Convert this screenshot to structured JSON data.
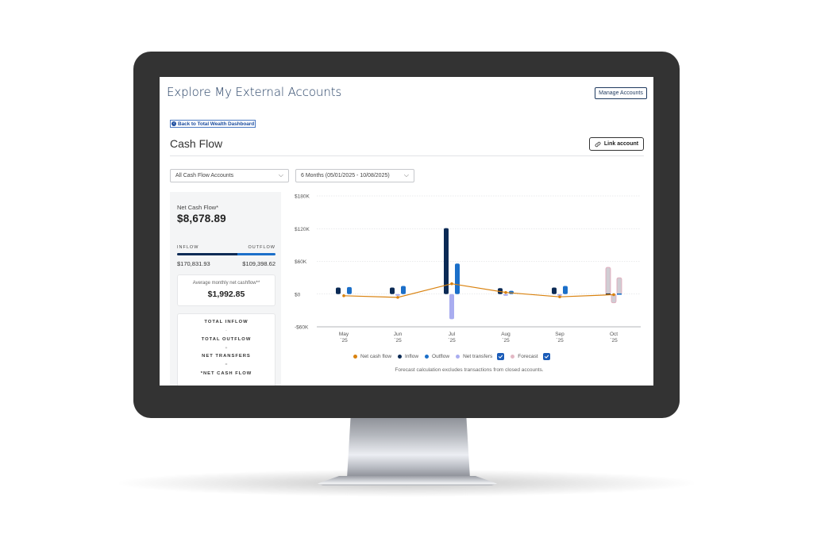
{
  "header": {
    "title": "Explore My External Accounts",
    "manage_accounts_label": "Manage Accounts"
  },
  "nav": {
    "back_link_label": "Back to Total Wealth Dashboard"
  },
  "section": {
    "title": "Cash Flow",
    "link_account_label": "Link account"
  },
  "filters": {
    "accounts": {
      "selected": "All Cash Flow Accounts"
    },
    "date_range": {
      "selected": "6 Months (05/01/2025 - 10/08/2025)"
    }
  },
  "summary": {
    "net_cash_flow_label": "Net Cash Flow*",
    "net_cash_flow_value": "$8,678.89",
    "inflow_label": "INFLOW",
    "outflow_label": "OUTFLOW",
    "inflow_value": "$170,831.93",
    "outflow_value": "$109,398.62",
    "inflow_share_pct": 61,
    "average_label": "Average monthly net cashflow**",
    "average_value": "$1,992.85",
    "formula": {
      "line1": "TOTAL INFLOW",
      "op1": "-",
      "line2": "TOTAL OUTFLOW",
      "op2": "+",
      "line3": "NET TRANSFERS",
      "op3": "=",
      "line4": "*NET CASH FLOW"
    }
  },
  "legend": {
    "items": [
      {
        "label": "Net cash flow",
        "color": "#d9820f",
        "checkbox": false
      },
      {
        "label": "Inflow",
        "color": "#0b2a55",
        "checkbox": false
      },
      {
        "label": "Outflow",
        "color": "#1b6fc9",
        "checkbox": false
      },
      {
        "label": "Net transfers",
        "color": "#a9adf0",
        "checkbox": true
      },
      {
        "label": "Forecast",
        "color": "#e3b8c4",
        "checkbox": true
      }
    ]
  },
  "footnote": "Forecast calculation excludes transactions from closed accounts.",
  "colors": {
    "brand_navy": "#1f3a5f",
    "inflow": "#0b2a55",
    "outflow": "#1b6fc9",
    "net_transfers": "#a9adf0",
    "net_cash_flow": "#d9820f",
    "forecast_fill": "#cfcdd3",
    "forecast_border": "#e3a5b8"
  },
  "chart_data": {
    "type": "bar",
    "title": "Cash Flow",
    "xlabel": "",
    "ylabel": "",
    "ylim": [
      -60000,
      180000
    ],
    "yticks": [
      "$180K",
      "$120K",
      "$60K",
      "$0",
      "-$60K"
    ],
    "ytick_values": [
      180000,
      120000,
      60000,
      0,
      -60000
    ],
    "categories": [
      "May '25",
      "Jun '25",
      "Jul '25",
      "Aug '25",
      "Sep '25",
      "Oct '25"
    ],
    "category_labels": [
      {
        "month": "May",
        "year": "`25"
      },
      {
        "month": "Jun",
        "year": "`25"
      },
      {
        "month": "Jul",
        "year": "`25"
      },
      {
        "month": "Aug",
        "year": "`25"
      },
      {
        "month": "Sep",
        "year": "`25"
      },
      {
        "month": "Oct",
        "year": "`25"
      }
    ],
    "series": [
      {
        "name": "Inflow",
        "type": "bar",
        "values": [
          12000,
          12000,
          121000,
          11000,
          12000,
          0
        ]
      },
      {
        "name": "Outflow",
        "type": "bar",
        "values": [
          13000,
          15000,
          56000,
          6000,
          15000,
          2000
        ]
      },
      {
        "name": "Net transfers",
        "type": "bar",
        "values": [
          0,
          -3000,
          -46000,
          -3000,
          -3000,
          0
        ]
      },
      {
        "name": "Net cash flow",
        "type": "line",
        "values": [
          -3000,
          -6000,
          19000,
          3000,
          -5000,
          -1000
        ]
      },
      {
        "name": "Forecast inflow",
        "type": "bar",
        "values": [
          0,
          0,
          0,
          0,
          0,
          49000
        ]
      },
      {
        "name": "Forecast outflow",
        "type": "bar",
        "values": [
          0,
          0,
          0,
          0,
          0,
          30000
        ]
      },
      {
        "name": "Forecast net transfers",
        "type": "bar",
        "values": [
          0,
          0,
          0,
          0,
          0,
          -16000
        ]
      }
    ],
    "grid": true,
    "legend_position": "bottom"
  }
}
